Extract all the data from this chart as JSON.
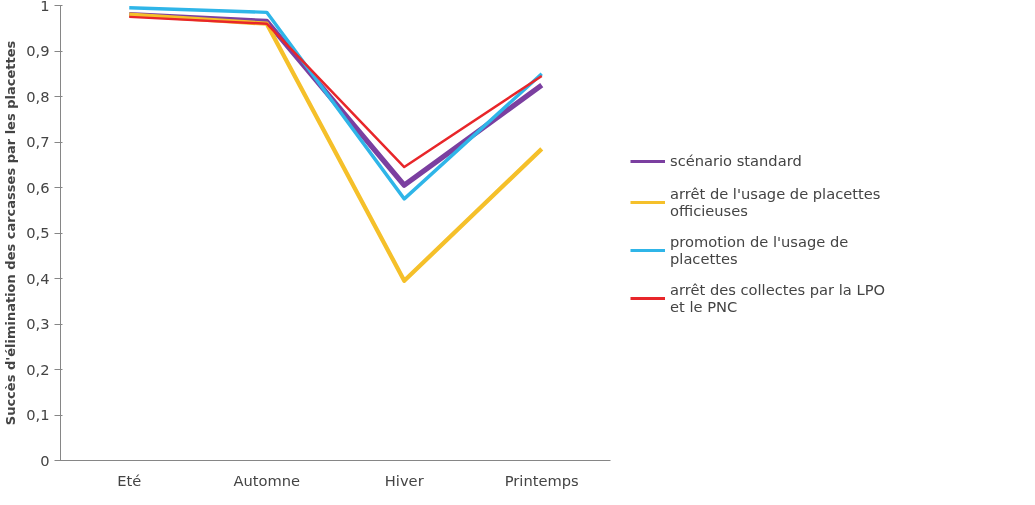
{
  "chart_data": {
    "type": "line",
    "ylabel": "Succès d'élimination des carcasses par les placettes",
    "categories": [
      "Eté",
      "Automne",
      "Hiver",
      "Printemps"
    ],
    "ylim": [
      0,
      1
    ],
    "yticks": [
      {
        "value": 0,
        "label": "0"
      },
      {
        "value": 0.1,
        "label": "0,1"
      },
      {
        "value": 0.2,
        "label": "0,2"
      },
      {
        "value": 0.3,
        "label": "0,3"
      },
      {
        "value": 0.4,
        "label": "0,4"
      },
      {
        "value": 0.5,
        "label": "0,5"
      },
      {
        "value": 0.6,
        "label": "0,6"
      },
      {
        "value": 0.7,
        "label": "0,7"
      },
      {
        "value": 0.8,
        "label": "0,8"
      },
      {
        "value": 0.9,
        "label": "0,9"
      },
      {
        "value": 1,
        "label": "1"
      }
    ],
    "grid": false,
    "legend": "right",
    "marker": "none",
    "line_style": "solid",
    "series": [
      {
        "name": "scénario standard",
        "color": "#7b3fa0",
        "values": [
          0.98,
          0.965,
          0.605,
          0.825
        ]
      },
      {
        "name": "arrêt de l'usage de placettes officieuses",
        "color": "#f5c02a",
        "values": [
          0.98,
          0.96,
          0.395,
          0.685
        ]
      },
      {
        "name": "promotion de l'usage de placettes",
        "color": "#2fb5e8",
        "values": [
          0.995,
          0.985,
          0.575,
          0.85
        ]
      },
      {
        "name": "arrêt des collectes par la LPO et le PNC",
        "color": "#e8262a",
        "values": [
          0.975,
          0.96,
          0.645,
          0.845
        ]
      }
    ]
  }
}
